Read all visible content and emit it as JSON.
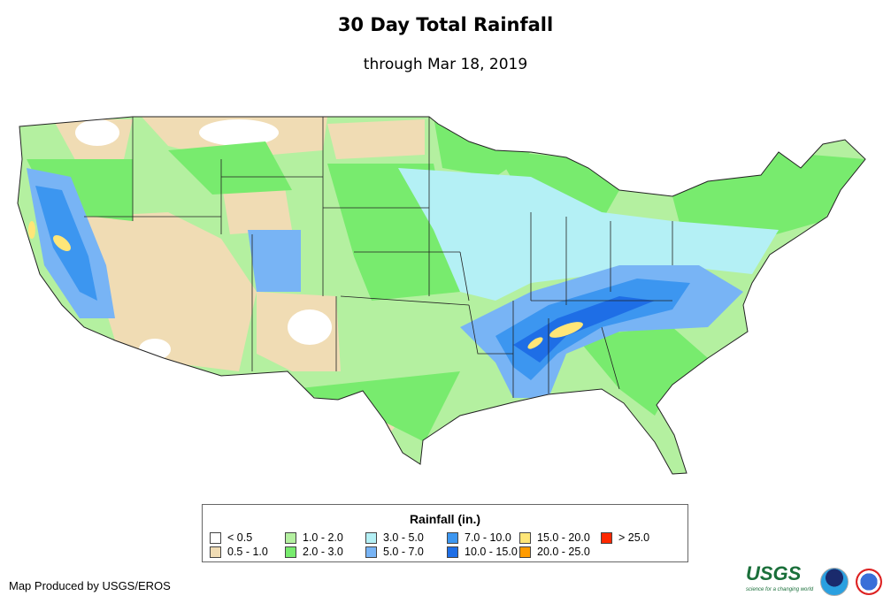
{
  "title": "30 Day Total Rainfall",
  "subtitle": "through Mar 18, 2019",
  "legend": {
    "title": "Rainfall (in.)",
    "items": [
      {
        "label": "< 0.5",
        "color": "#ffffff"
      },
      {
        "label": "0.5 - 1.0",
        "color": "#f0dcb4"
      },
      {
        "label": "1.0 - 2.0",
        "color": "#b4f0a0"
      },
      {
        "label": "2.0 - 3.0",
        "color": "#78eb6e"
      },
      {
        "label": "3.0 - 5.0",
        "color": "#b4f0f5"
      },
      {
        "label": "5.0 - 7.0",
        "color": "#78b4f5"
      },
      {
        "label": "7.0 - 10.0",
        "color": "#3c96f0"
      },
      {
        "label": "10.0 - 15.0",
        "color": "#1e6ee6"
      },
      {
        "label": "15.0 - 20.0",
        "color": "#ffe678"
      },
      {
        "label": "20.0 - 25.0",
        "color": "#ff9b00"
      },
      {
        "label": "> 25.0",
        "color": "#ff2800"
      }
    ]
  },
  "credit": "Map Produced by USGS/EROS",
  "logos": {
    "usgs": "USGS",
    "usgs_tagline": "science for a changing world",
    "noaa": "noaa",
    "nws": "National Weather Service"
  }
}
